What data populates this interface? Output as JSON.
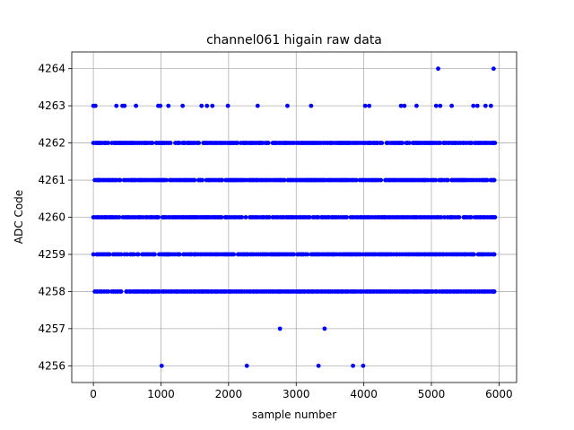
{
  "chart_data": {
    "type": "scatter",
    "title": "channel061 higain raw data",
    "xlabel": "sample number",
    "ylabel": "ADC Code",
    "xlim": [
      -320,
      6260
    ],
    "ylim": [
      4255.55,
      4264.45
    ],
    "xticks": [
      0,
      1000,
      2000,
      3000,
      4000,
      5000,
      6000
    ],
    "yticks": [
      4256,
      4257,
      4258,
      4259,
      4260,
      4261,
      4262,
      4263,
      4264
    ],
    "grid": true,
    "marker_color": "#0000ff",
    "series": [
      {
        "dense_levels": [
          {
            "y": 4262,
            "x_range": [
              0,
              5940
            ]
          },
          {
            "y": 4261,
            "x_range": [
              20,
              5930
            ]
          },
          {
            "y": 4260,
            "x_range": [
              0,
              5940
            ]
          },
          {
            "y": 4259,
            "x_range": [
              0,
              5930
            ]
          },
          {
            "y": 4258,
            "x_range": [
              20,
              5930
            ]
          }
        ],
        "points": [
          {
            "x": 1010,
            "y": 4256
          },
          {
            "x": 2270,
            "y": 4256
          },
          {
            "x": 3330,
            "y": 4256
          },
          {
            "x": 3840,
            "y": 4256
          },
          {
            "x": 3990,
            "y": 4256
          },
          {
            "x": 2760,
            "y": 4257
          },
          {
            "x": 3420,
            "y": 4257
          },
          {
            "x": 0,
            "y": 4263
          },
          {
            "x": 30,
            "y": 4263
          },
          {
            "x": 340,
            "y": 4263
          },
          {
            "x": 430,
            "y": 4263
          },
          {
            "x": 460,
            "y": 4263
          },
          {
            "x": 630,
            "y": 4263
          },
          {
            "x": 960,
            "y": 4263
          },
          {
            "x": 990,
            "y": 4263
          },
          {
            "x": 1110,
            "y": 4263
          },
          {
            "x": 1320,
            "y": 4263
          },
          {
            "x": 1600,
            "y": 4263
          },
          {
            "x": 1680,
            "y": 4263
          },
          {
            "x": 1760,
            "y": 4263
          },
          {
            "x": 1990,
            "y": 4263
          },
          {
            "x": 2430,
            "y": 4263
          },
          {
            "x": 2870,
            "y": 4263
          },
          {
            "x": 3220,
            "y": 4263
          },
          {
            "x": 4020,
            "y": 4263
          },
          {
            "x": 4080,
            "y": 4263
          },
          {
            "x": 4550,
            "y": 4263
          },
          {
            "x": 4600,
            "y": 4263
          },
          {
            "x": 4780,
            "y": 4263
          },
          {
            "x": 5070,
            "y": 4263
          },
          {
            "x": 5130,
            "y": 4263
          },
          {
            "x": 5300,
            "y": 4263
          },
          {
            "x": 5620,
            "y": 4263
          },
          {
            "x": 5680,
            "y": 4263
          },
          {
            "x": 5800,
            "y": 4263
          },
          {
            "x": 5880,
            "y": 4263
          },
          {
            "x": 5100,
            "y": 4264
          },
          {
            "x": 5920,
            "y": 4264
          }
        ]
      }
    ]
  }
}
